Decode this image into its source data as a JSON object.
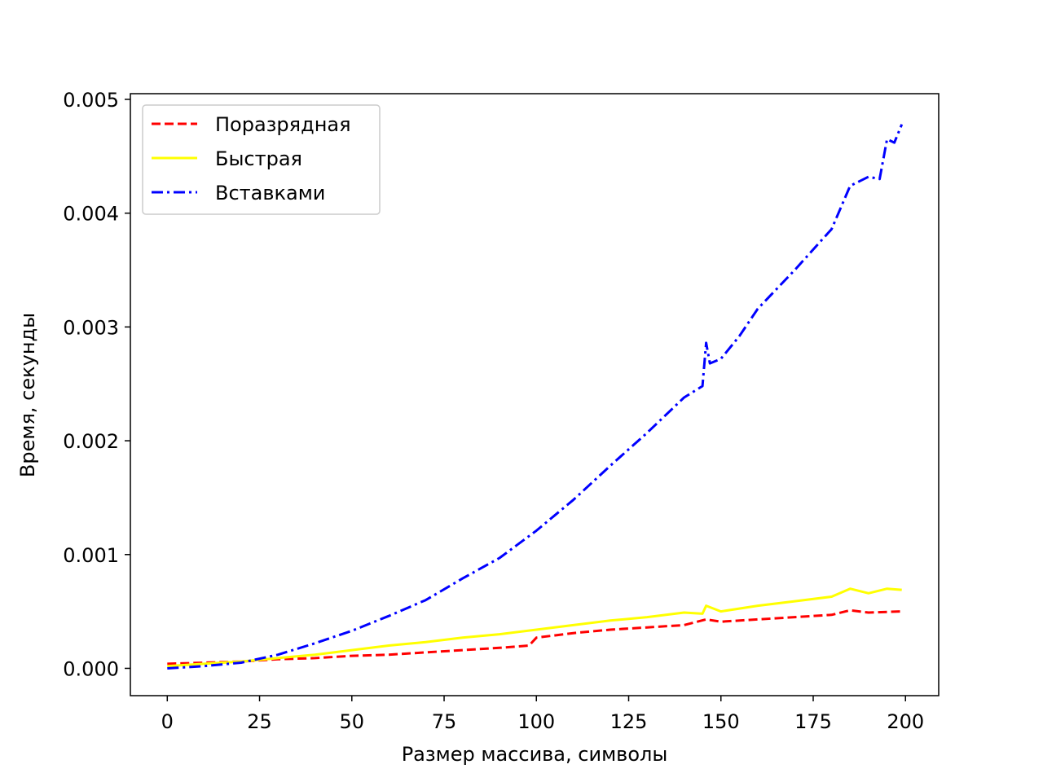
{
  "chart_data": {
    "type": "line",
    "title": "",
    "xlabel": "Размер массива, символы",
    "ylabel": "Время, секунды",
    "xlim": [
      -10,
      209
    ],
    "ylim": [
      -0.00024,
      0.00505
    ],
    "xticks": [
      0,
      25,
      50,
      75,
      100,
      125,
      150,
      175,
      200
    ],
    "xtick_labels": [
      "0",
      "25",
      "50",
      "75",
      "100",
      "125",
      "150",
      "175",
      "200"
    ],
    "yticks": [
      0,
      0.001,
      0.002,
      0.003,
      0.004,
      0.005
    ],
    "ytick_labels": [
      "0.000",
      "0.001",
      "0.002",
      "0.003",
      "0.004",
      "0.005"
    ],
    "legend_position": "top-left",
    "series": [
      {
        "name": "Поразрядная",
        "color": "#ff0000",
        "style": "dashed",
        "x": [
          0,
          10,
          20,
          30,
          40,
          50,
          60,
          70,
          80,
          90,
          98,
          100,
          110,
          120,
          130,
          140,
          146,
          150,
          160,
          170,
          180,
          185,
          190,
          199
        ],
        "y": [
          4e-05,
          5e-05,
          6e-05,
          8e-05,
          9e-05,
          0.00011,
          0.00012,
          0.00014,
          0.00016,
          0.00018,
          0.0002,
          0.00027,
          0.00031,
          0.00034,
          0.00036,
          0.00038,
          0.00043,
          0.00041,
          0.00043,
          0.00045,
          0.00047,
          0.00051,
          0.00049,
          0.0005
        ]
      },
      {
        "name": "Быстрая",
        "color": "#ffff00",
        "style": "solid",
        "x": [
          0,
          10,
          20,
          30,
          40,
          50,
          60,
          70,
          80,
          90,
          100,
          110,
          120,
          130,
          140,
          145,
          146,
          150,
          160,
          170,
          180,
          185,
          190,
          195,
          199
        ],
        "y": [
          2e-05,
          4e-05,
          6e-05,
          9e-05,
          0.00012,
          0.00016,
          0.0002,
          0.00023,
          0.00027,
          0.0003,
          0.00034,
          0.00038,
          0.00042,
          0.00045,
          0.00049,
          0.00048,
          0.00055,
          0.0005,
          0.00055,
          0.00059,
          0.00063,
          0.0007,
          0.00066,
          0.0007,
          0.00069
        ]
      },
      {
        "name": "Вставками",
        "color": "#0000ff",
        "style": "dashdot",
        "x": [
          0,
          10,
          20,
          30,
          40,
          50,
          60,
          70,
          80,
          90,
          100,
          110,
          120,
          130,
          140,
          145,
          146,
          147,
          150,
          155,
          160,
          170,
          180,
          185,
          190,
          193,
          195,
          197,
          199
        ],
        "y": [
          0,
          2e-05,
          5e-05,
          0.00012,
          0.00022,
          0.00033,
          0.00046,
          0.0006,
          0.00079,
          0.00097,
          0.00121,
          0.00148,
          0.00178,
          0.00207,
          0.00238,
          0.00248,
          0.00286,
          0.00268,
          0.00272,
          0.00292,
          0.00316,
          0.0035,
          0.00386,
          0.00424,
          0.00432,
          0.0043,
          0.00465,
          0.00462,
          0.00478
        ]
      }
    ]
  }
}
